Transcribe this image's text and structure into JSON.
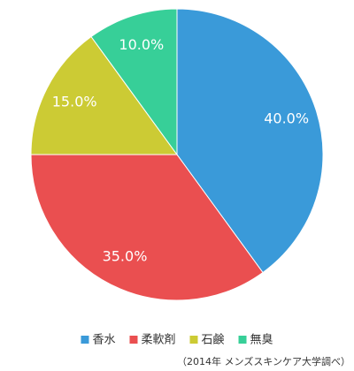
{
  "chart_data": {
    "type": "pie",
    "categories": [
      "香水",
      "柔軟剤",
      "石鹸",
      "無臭"
    ],
    "values": [
      40,
      35,
      15,
      10
    ],
    "value_labels": [
      "40.0%",
      "35.0%",
      "15.0%",
      "10.0%"
    ],
    "colors": [
      "#3a9ad9",
      "#ea4f50",
      "#cccb34",
      "#37cf98"
    ],
    "legend": "bottom",
    "source": "（2014年 メンズスキンケア大学調べ）"
  }
}
